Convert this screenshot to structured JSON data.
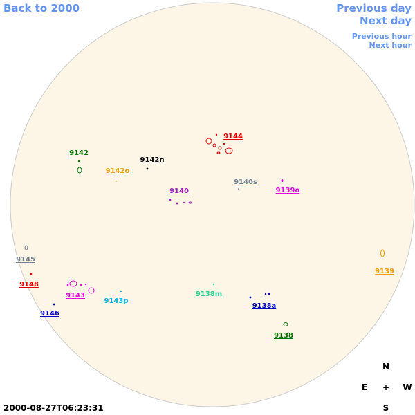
{
  "nav": {
    "back": "Back to 2000",
    "previous_day": "Previous day",
    "next_day": "Next day",
    "previous_hour": "Previous hour",
    "next_hour": "Next hour"
  },
  "timestamp": "2000-08-27T06:23:31",
  "compass": {
    "north": "N",
    "east": "E",
    "center": "+",
    "west": "W",
    "south": "S"
  },
  "regions": [
    {
      "label": "9144",
      "color": "#e00000"
    },
    {
      "label": "9142",
      "color": "#007000"
    },
    {
      "label": "9142n",
      "color": "#000000"
    },
    {
      "label": "9142o",
      "color": "#f0a000"
    },
    {
      "label": "9140",
      "color": "#a020c0"
    },
    {
      "label": "9140s",
      "color": "#708090"
    },
    {
      "label": "9139o",
      "color": "#e000e0"
    },
    {
      "label": "9145",
      "color": "#708090"
    },
    {
      "label": "9148",
      "color": "#e00000"
    },
    {
      "label": "9143",
      "color": "#e000e0"
    },
    {
      "label": "9143p",
      "color": "#00b8e8"
    },
    {
      "label": "9138m",
      "color": "#20d090"
    },
    {
      "label": "9146",
      "color": "#0000c0"
    },
    {
      "label": "9138a",
      "color": "#0000c0"
    },
    {
      "label": "9139",
      "color": "#f0a000"
    },
    {
      "label": "9138",
      "color": "#007000"
    }
  ]
}
